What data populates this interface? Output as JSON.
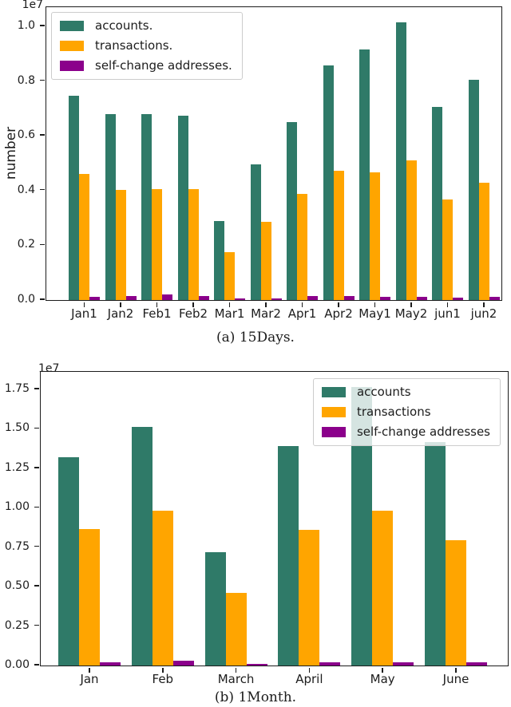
{
  "figure": {
    "background": "#ffffff",
    "captions": {
      "a": "(a) 15Days.",
      "b": "(b) 1Month."
    }
  },
  "colors": {
    "accounts": "#2f7a68",
    "transactions": "#ffa500",
    "self_change_addresses": "#8b008b",
    "axis": "#1c1c1c"
  },
  "chart_data": [
    {
      "type": "bar",
      "caption": "(a) 15Days.",
      "title": "",
      "xlabel": "",
      "ylabel": "number",
      "offset_label": "1e7",
      "scale_note": "values in units of 1e7",
      "legend_position": "upper left",
      "grid": false,
      "categories": [
        "Jan1",
        "Jan2",
        "Feb1",
        "Feb2",
        "Mar1",
        "Mar2",
        "Apr1",
        "Apr2",
        "May1",
        "May2",
        "jun1",
        "jun2"
      ],
      "series": [
        {
          "name": "accounts.",
          "color": "#2f7a68",
          "values": [
            0.745,
            0.68,
            0.68,
            0.672,
            0.288,
            0.497,
            0.65,
            0.858,
            0.915,
            1.015,
            0.705,
            0.806
          ]
        },
        {
          "name": "transactions.",
          "color": "#ffa500",
          "values": [
            0.461,
            0.403,
            0.405,
            0.405,
            0.176,
            0.287,
            0.388,
            0.472,
            0.467,
            0.51,
            0.366,
            0.428
          ]
        },
        {
          "name": "self-change addresses.",
          "color": "#8b008b",
          "values": [
            0.012,
            0.015,
            0.02,
            0.015,
            0.006,
            0.007,
            0.014,
            0.014,
            0.012,
            0.012,
            0.009,
            0.013
          ]
        }
      ],
      "yticks": [
        0.0,
        0.2,
        0.4,
        0.6,
        0.8,
        1.0
      ],
      "ytick_labels": [
        "0.0",
        "0.2",
        "0.4",
        "0.6",
        "0.8",
        "1.0"
      ],
      "ylim": [
        0,
        1.067
      ]
    },
    {
      "type": "bar",
      "caption": "(b) 1Month.",
      "title": "",
      "xlabel": "",
      "ylabel": "",
      "offset_label": "1e7",
      "scale_note": "values in units of 1e7",
      "legend_position": "upper right",
      "grid": false,
      "categories": [
        "Jan",
        "Feb",
        "March",
        "April",
        "May",
        "June"
      ],
      "series": [
        {
          "name": "accounts",
          "color": "#2f7a68",
          "values": [
            1.32,
            1.513,
            0.72,
            1.392,
            1.764,
            1.417
          ]
        },
        {
          "name": "transactions",
          "color": "#ffa500",
          "values": [
            0.865,
            0.98,
            0.462,
            0.859,
            0.98,
            0.795
          ]
        },
        {
          "name": "self-change addresses",
          "color": "#8b008b",
          "values": [
            0.022,
            0.03,
            0.01,
            0.022,
            0.02,
            0.02
          ]
        }
      ],
      "yticks": [
        0.0,
        0.25,
        0.5,
        0.75,
        1.0,
        1.25,
        1.5,
        1.75
      ],
      "ytick_labels": [
        "0.00",
        "0.25",
        "0.50",
        "0.75",
        "1.00",
        "1.25",
        "1.50",
        "1.75"
      ],
      "ylim": [
        0,
        1.856
      ]
    }
  ]
}
